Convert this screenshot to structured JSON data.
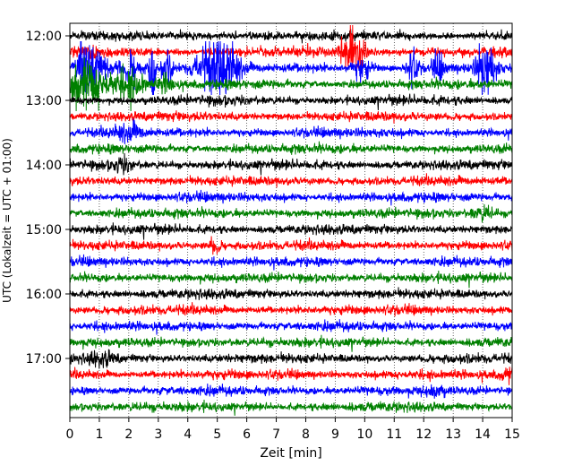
{
  "chart_data": {
    "type": "line",
    "title": "",
    "xlabel": "Zeit  [min]",
    "ylabel": "UTC (Lokalzeit = UTC + 01:00)",
    "xlim": [
      0,
      15
    ],
    "x_ticks": [
      "0",
      "1",
      "2",
      "3",
      "4",
      "5",
      "6",
      "7",
      "8",
      "9",
      "10",
      "11",
      "12",
      "13",
      "14",
      "15"
    ],
    "y_ticks": [
      "12:00",
      "13:00",
      "14:00",
      "15:00",
      "16:00",
      "17:00"
    ],
    "grid": "vertical dotted at each minute",
    "trace_interval_minutes": 15,
    "trace_colors_cycle": [
      "#000000",
      "#ff0000",
      "#0000ff",
      "#008000"
    ],
    "traces": [
      {
        "start": "12:00",
        "color": "#000000"
      },
      {
        "start": "12:15",
        "color": "#ff0000",
        "events": [
          {
            "t": 9.6,
            "amp": 1.4,
            "width": 0.35
          },
          {
            "t": 0.8,
            "amp": 0.5,
            "width": 0.2
          }
        ]
      },
      {
        "start": "12:30",
        "color": "#0000ff",
        "events": [
          {
            "t": 0.5,
            "amp": 1.2,
            "width": 0.3
          },
          {
            "t": 1.0,
            "amp": 0.9,
            "width": 0.4
          },
          {
            "t": 2.1,
            "amp": 0.8,
            "width": 0.3
          },
          {
            "t": 2.8,
            "amp": 2.2,
            "width": 0.1
          },
          {
            "t": 3.3,
            "amp": 0.8,
            "width": 0.2
          },
          {
            "t": 4.8,
            "amp": 1.3,
            "width": 0.6
          },
          {
            "t": 5.4,
            "amp": 1.0,
            "width": 0.4
          },
          {
            "t": 9.9,
            "amp": 0.6,
            "width": 0.3
          },
          {
            "t": 11.6,
            "amp": 1.0,
            "width": 0.2
          },
          {
            "t": 12.5,
            "amp": 0.7,
            "width": 0.2
          },
          {
            "t": 14.1,
            "amp": 1.6,
            "width": 0.3
          }
        ]
      },
      {
        "start": "12:45",
        "color": "#008000",
        "events": [
          {
            "t": 0.6,
            "amp": 1.2,
            "width": 0.8
          },
          {
            "t": 2.1,
            "amp": 0.8,
            "width": 0.5
          },
          {
            "t": 3.3,
            "amp": 0.5,
            "width": 0.3
          }
        ]
      },
      {
        "start": "13:00",
        "color": "#000000"
      },
      {
        "start": "13:15",
        "color": "#ff0000"
      },
      {
        "start": "13:30",
        "color": "#0000ff",
        "events": [
          {
            "t": 2.0,
            "amp": 0.4,
            "width": 0.5
          }
        ]
      },
      {
        "start": "13:45",
        "color": "#008000"
      },
      {
        "start": "14:00",
        "color": "#000000",
        "events": [
          {
            "t": 1.8,
            "amp": 0.3,
            "width": 0.3
          }
        ]
      },
      {
        "start": "14:15",
        "color": "#ff0000"
      },
      {
        "start": "14:30",
        "color": "#0000ff"
      },
      {
        "start": "14:45",
        "color": "#008000",
        "events": [
          {
            "t": 14.0,
            "amp": 0.3,
            "width": 0.4
          }
        ]
      },
      {
        "start": "15:00",
        "color": "#000000"
      },
      {
        "start": "15:15",
        "color": "#ff0000",
        "events": [
          {
            "t": 4.9,
            "amp": 0.4,
            "width": 0.2
          }
        ]
      },
      {
        "start": "15:30",
        "color": "#0000ff"
      },
      {
        "start": "15:45",
        "color": "#008000"
      },
      {
        "start": "16:00",
        "color": "#000000"
      },
      {
        "start": "16:15",
        "color": "#ff0000"
      },
      {
        "start": "16:30",
        "color": "#0000ff"
      },
      {
        "start": "16:45",
        "color": "#008000"
      },
      {
        "start": "17:00",
        "color": "#000000",
        "events": [
          {
            "t": 1.1,
            "amp": 0.3,
            "width": 0.4
          }
        ]
      },
      {
        "start": "17:15",
        "color": "#ff0000",
        "events": [
          {
            "t": 14.9,
            "amp": 0.3,
            "width": 0.3
          }
        ]
      },
      {
        "start": "17:30",
        "color": "#0000ff",
        "events": [
          {
            "t": 12.4,
            "amp": 0.3,
            "width": 0.3
          }
        ]
      },
      {
        "start": "17:45",
        "color": "#008000"
      }
    ]
  }
}
